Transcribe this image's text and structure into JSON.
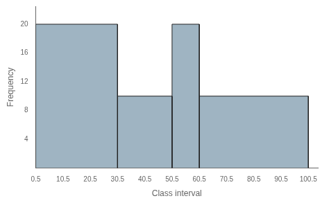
{
  "chart_data": {
    "type": "histogram",
    "bins": [
      0.5,
      30.5,
      50.5,
      60.5,
      100.5
    ],
    "values": [
      20,
      10,
      20,
      10
    ],
    "color": "#9fb4c2",
    "xlabel": "Class interval",
    "ylabel": "Frequency",
    "xlim": [
      0.5,
      104
    ],
    "ylim": [
      0,
      22.5
    ],
    "xticks": [
      0.5,
      10.5,
      20.5,
      30.5,
      40.5,
      50.5,
      60.5,
      70.5,
      80.5,
      90.5,
      100.5
    ],
    "yticks": [
      4,
      8,
      12,
      16,
      20
    ],
    "grid": false
  }
}
